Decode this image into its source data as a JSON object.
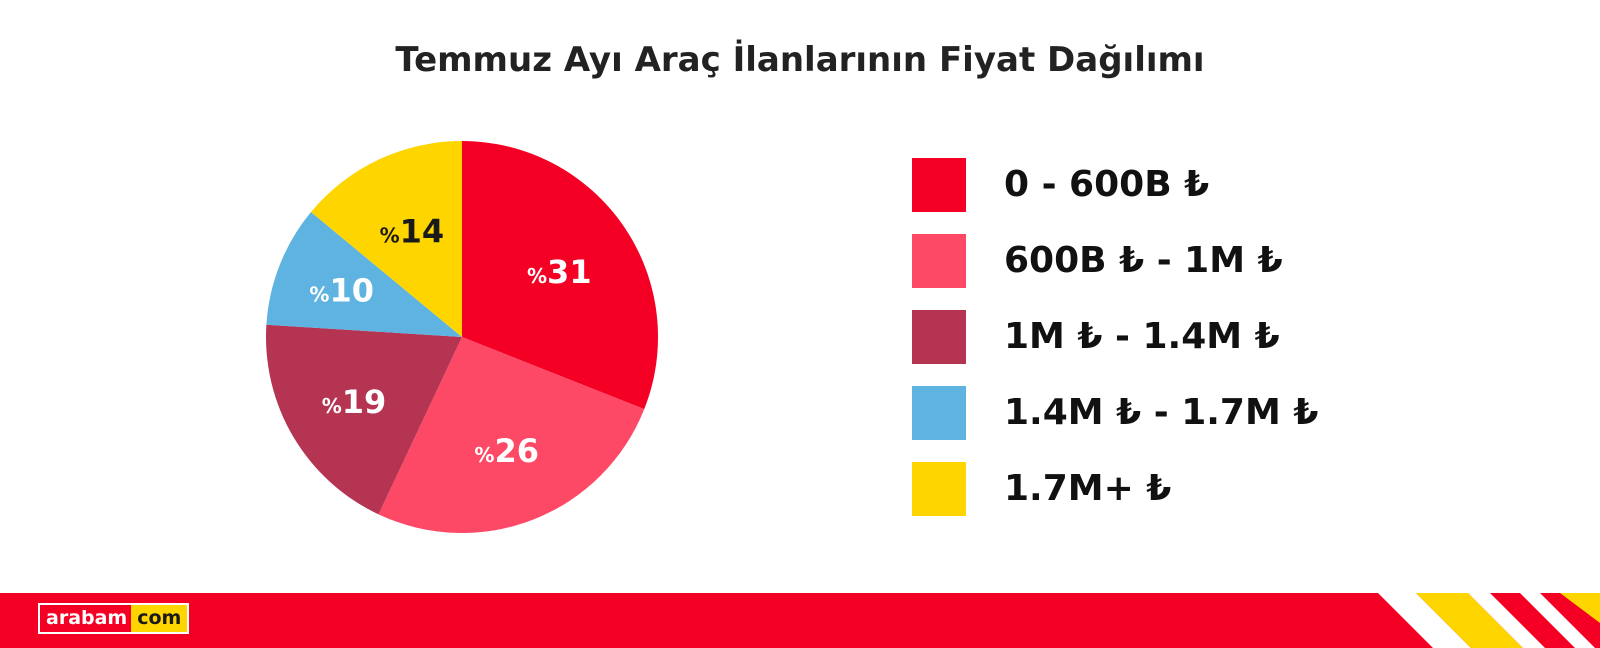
{
  "chart_data": {
    "type": "pie",
    "title": "Temmuz Ayı Araç İlanlarının Fiyat Dağılımı",
    "slices": [
      {
        "label": "0 - 600B ₺",
        "value": 31,
        "display": "31",
        "prefix": "%",
        "color": "#f50025"
      },
      {
        "label": "600B ₺ - 1M ₺",
        "value": 26,
        "display": "26",
        "prefix": "%",
        "color": "#fd4866"
      },
      {
        "label": "1M ₺ - 1.4M ₺",
        "value": 19,
        "display": "19",
        "prefix": "%",
        "color": "#b43451"
      },
      {
        "label": "1.4M ₺ - 1.7M ₺",
        "value": 10,
        "display": "10",
        "prefix": "%",
        "color": "#5eb3e0"
      },
      {
        "label": "1.7M+ ₺",
        "value": 14,
        "display": "14",
        "prefix": "%",
        "color": "#ffd500"
      }
    ],
    "legend_position": "right"
  },
  "footer": {
    "brand_left": "arabam",
    "brand_right": "com",
    "bar_color": "#f50025",
    "stripe_color": "#ffd500"
  }
}
